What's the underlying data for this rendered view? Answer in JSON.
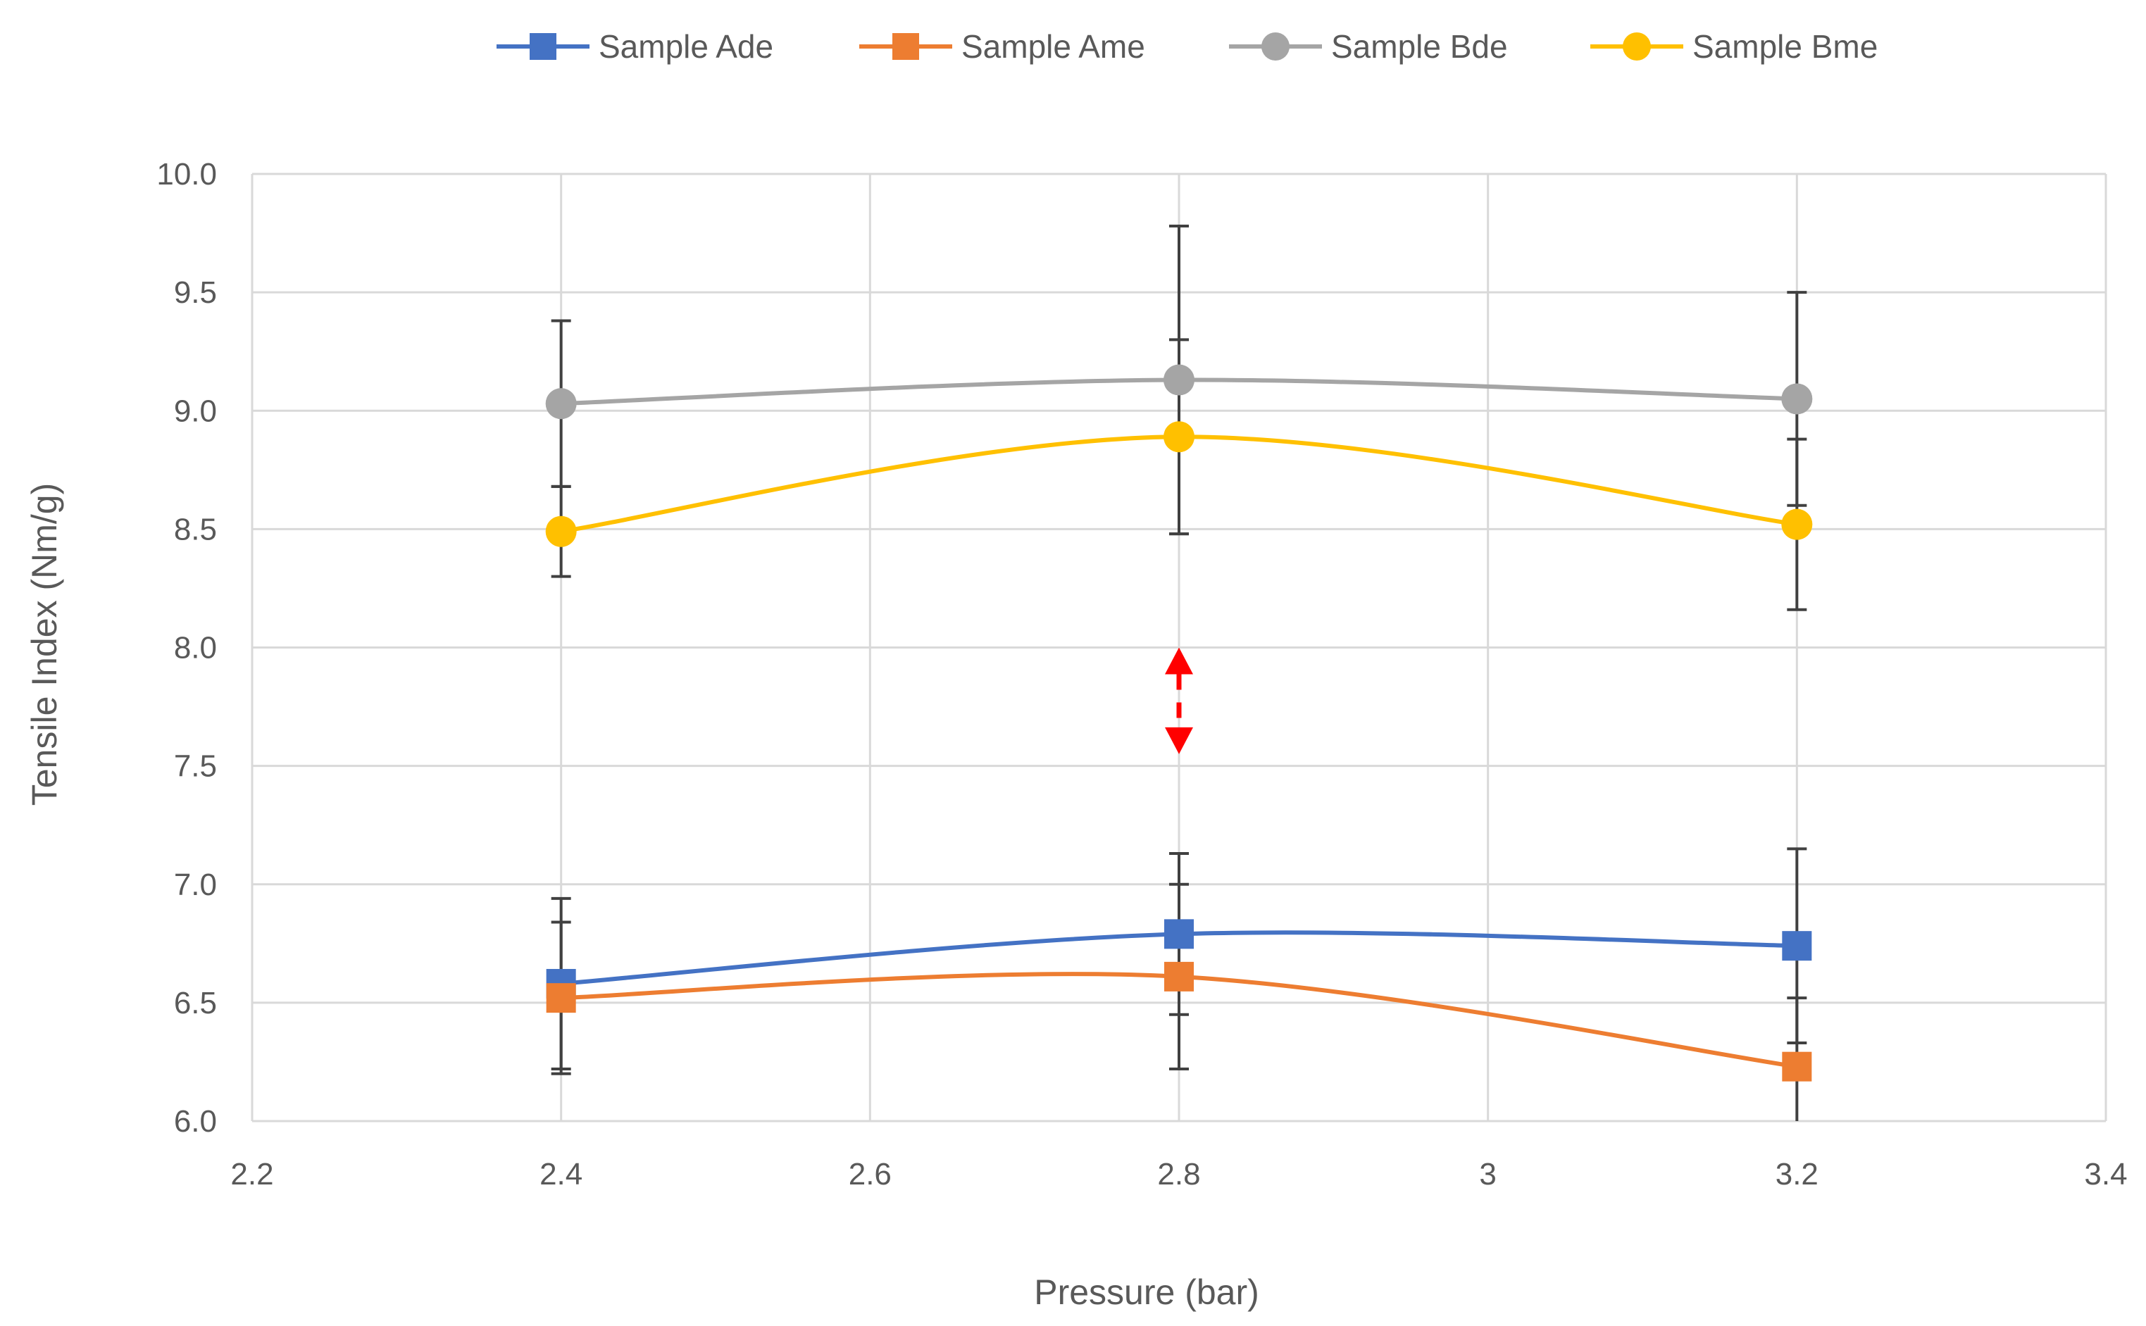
{
  "chart_data": {
    "type": "line",
    "xlabel": "Pressure (bar)",
    "ylabel": "Tensile Index (Nm/g)",
    "xlim": [
      2.2,
      3.4
    ],
    "ylim": [
      6.0,
      10.0
    ],
    "x_ticks": [
      2.2,
      2.4,
      2.6,
      2.8,
      3.0,
      3.2,
      3.4
    ],
    "x_tick_labels": [
      "2.2",
      "2.4",
      "2.6",
      "2.8",
      "3",
      "3.2",
      "3.4"
    ],
    "y_ticks": [
      6.0,
      6.5,
      7.0,
      7.5,
      8.0,
      8.5,
      9.0,
      9.5,
      10.0
    ],
    "y_tick_labels": [
      "6.0",
      "6.5",
      "7.0",
      "7.5",
      "8.0",
      "8.5",
      "9.0",
      "9.5",
      "10.0"
    ],
    "grid": true,
    "legend_position": "top",
    "x": [
      2.4,
      2.8,
      3.2
    ],
    "series": [
      {
        "name": "Sample Ade",
        "color": "#4472c4",
        "marker": "square",
        "values": [
          6.58,
          6.79,
          6.74
        ],
        "error": [
          0.36,
          0.34,
          0.41
        ]
      },
      {
        "name": "Sample Ame",
        "color": "#ed7d31",
        "marker": "square",
        "values": [
          6.52,
          6.61,
          6.23
        ],
        "error": [
          0.32,
          0.39,
          0.29
        ]
      },
      {
        "name": "Sample Bde",
        "color": "#a5a5a5",
        "marker": "circle",
        "values": [
          9.03,
          9.13,
          9.05
        ],
        "error": [
          0.35,
          0.65,
          0.45
        ]
      },
      {
        "name": "Sample Bme",
        "color": "#ffc000",
        "marker": "circle",
        "values": [
          8.49,
          8.89,
          8.52
        ],
        "error": [
          0.19,
          0.41,
          0.36
        ]
      }
    ],
    "annotations": [
      {
        "type": "double-arrow",
        "x": 2.8,
        "y_from": 7.55,
        "y_to": 8.0,
        "color": "#ff0000",
        "style": "dashed"
      }
    ]
  }
}
